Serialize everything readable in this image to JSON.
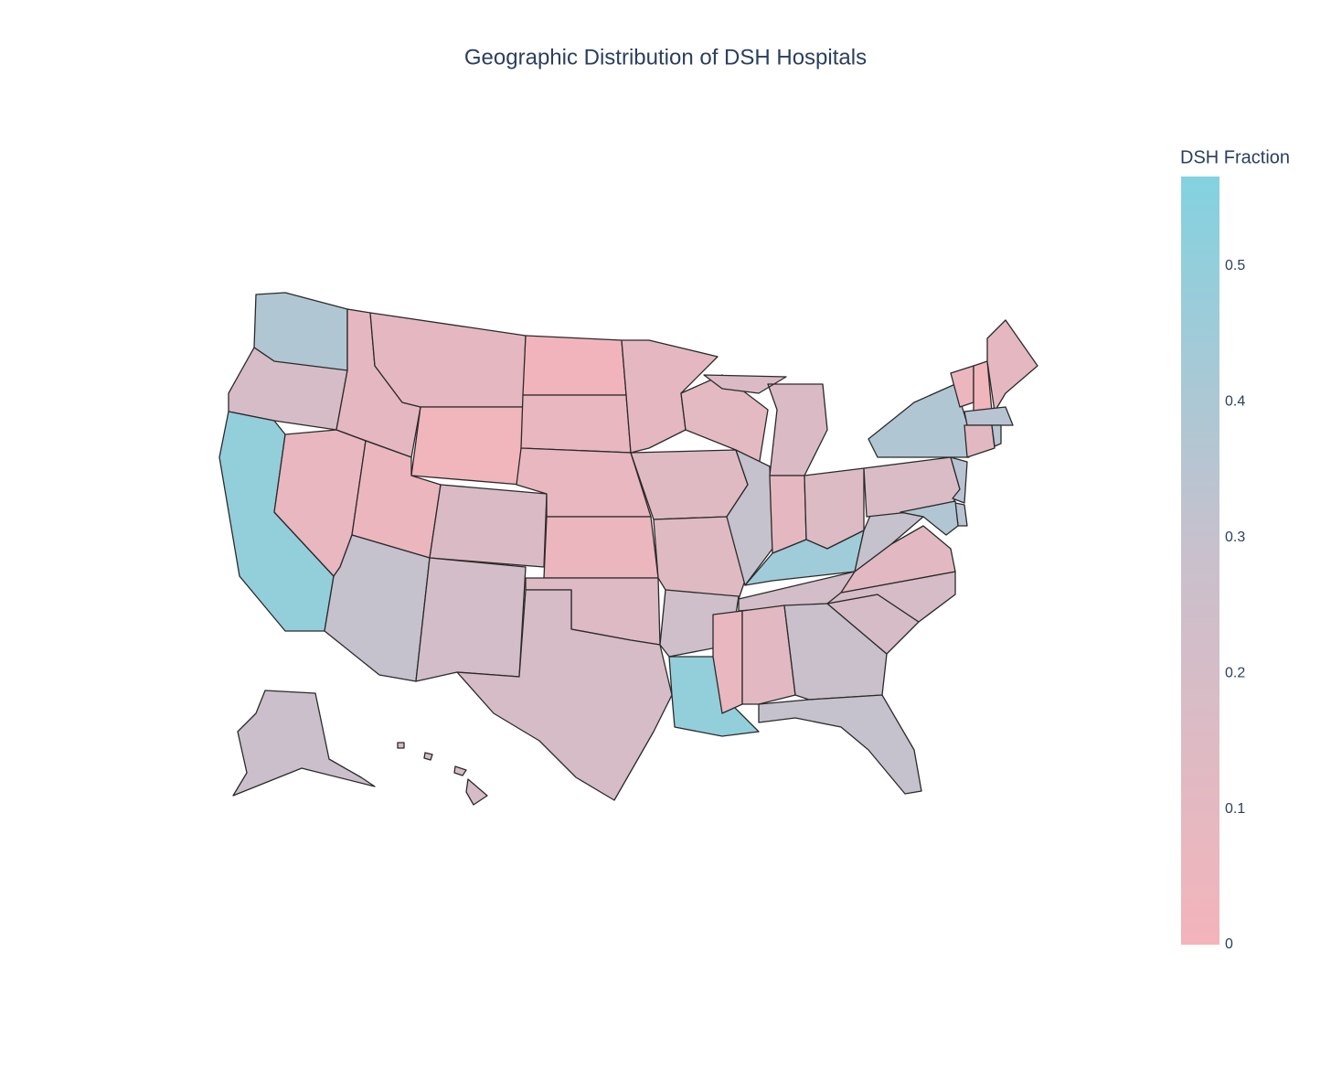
{
  "chart_data": {
    "type": "choropleth",
    "title": "Geographic Distribution of DSH Hospitals",
    "colorbar_title": "DSH Fraction",
    "values": [
      0.38,
      0.2,
      0.5,
      0.07,
      0.1,
      0.1,
      0.02,
      0.05,
      0.17,
      0.3,
      0.22,
      0.01,
      0.07,
      0.08,
      0.05,
      0.15,
      0.2,
      0.1,
      0.13,
      0.14,
      0.25,
      0.5,
      0.11,
      0.3,
      0.17,
      0.1,
      0.16,
      0.45,
      0.22,
      0.08,
      0.12,
      0.28,
      0.3,
      0.2,
      0.2,
      0.12,
      0.3,
      0.18,
      0.38,
      0.05,
      0.02,
      0.1,
      0.35,
      0.12,
      0.35,
      0.35,
      0.35,
      0.38,
      0.27,
      0.2
    ],
    "colorscale": [
      [
        0,
        "#f4b4bb"
      ],
      [
        0.5,
        "#c9c0cc"
      ],
      [
        1,
        "#83d2e0"
      ]
    ],
    "zlim": [
      0,
      0.566
    ],
    "zticks": [
      0,
      0.1,
      0.2,
      0.3,
      0.4,
      0.5
    ],
    "border_color": "#2a2a2a"
  }
}
